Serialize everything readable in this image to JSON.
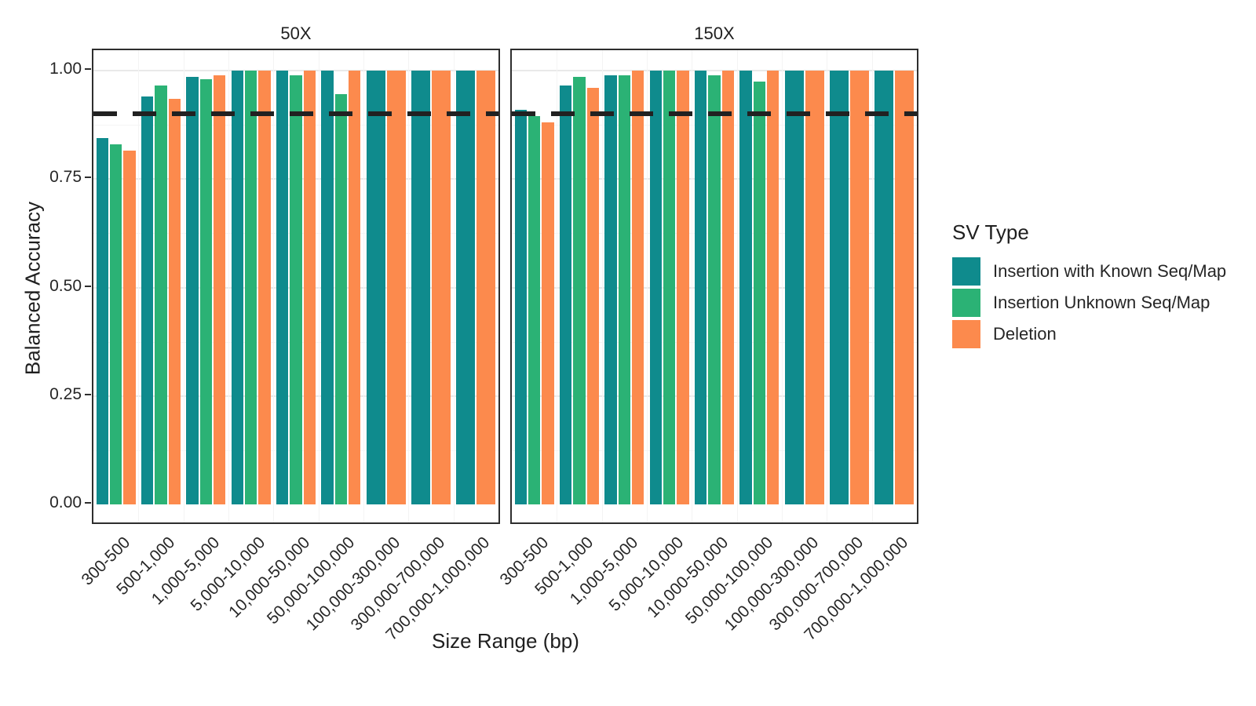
{
  "chart_data": {
    "type": "bar",
    "title": "",
    "xlabel": "Size Range (bp)",
    "ylabel": "Balanced Accuracy",
    "ylim": [
      0,
      1.0
    ],
    "yticks": [
      {
        "value": 0.0,
        "label": "0.00"
      },
      {
        "value": 0.25,
        "label": "0.25"
      },
      {
        "value": 0.5,
        "label": "0.50"
      },
      {
        "value": 0.75,
        "label": "0.75"
      },
      {
        "value": 1.0,
        "label": "1.00"
      }
    ],
    "grid": {
      "horizontal_major": [
        0.25,
        0.5,
        0.75,
        1.0
      ],
      "horizontal_minor": [
        0.125,
        0.375,
        0.625,
        0.875
      ]
    },
    "reference_line": {
      "value": 0.9,
      "style": "dashed",
      "color": "#212121"
    },
    "categories": [
      "300-500",
      "500-1,000",
      "1,000-5,000",
      "5,000-10,000",
      "10,000-50,000",
      "50,000-100,000",
      "100,000-300,000",
      "300,000-700,000",
      "700,000-1,000,000"
    ],
    "facets": [
      {
        "label": "50X",
        "series": [
          {
            "name": "Insertion with Known Seq/Map",
            "values": [
              0.845,
              0.94,
              0.985,
              1.0,
              1.0,
              1.0,
              1.0,
              1.0,
              1.0
            ]
          },
          {
            "name": "Insertion Unknown Seq/Map",
            "values": [
              0.83,
              0.965,
              0.98,
              1.0,
              0.99,
              0.945,
              null,
              null,
              null
            ]
          },
          {
            "name": "Deletion",
            "values": [
              0.815,
              0.935,
              0.99,
              1.0,
              1.0,
              1.0,
              1.0,
              1.0,
              1.0
            ]
          }
        ]
      },
      {
        "label": "150X",
        "series": [
          {
            "name": "Insertion with Known Seq/Map",
            "values": [
              0.91,
              0.965,
              0.99,
              1.0,
              1.0,
              1.0,
              1.0,
              1.0,
              1.0
            ]
          },
          {
            "name": "Insertion Unknown Seq/Map",
            "values": [
              0.895,
              0.985,
              0.99,
              1.0,
              0.99,
              0.975,
              null,
              null,
              null
            ]
          },
          {
            "name": "Deletion",
            "values": [
              0.88,
              0.96,
              1.0,
              1.0,
              1.0,
              1.0,
              1.0,
              1.0,
              1.0
            ]
          }
        ]
      }
    ],
    "legend": {
      "title": "SV Type",
      "entries": [
        {
          "label": "Insertion with Known Seq/Map",
          "color": "#0F8B8D"
        },
        {
          "label": "Insertion Unknown Seq/Map",
          "color": "#2BB275"
        },
        {
          "label": "Deletion",
          "color": "#FC8A4D"
        }
      ]
    }
  }
}
